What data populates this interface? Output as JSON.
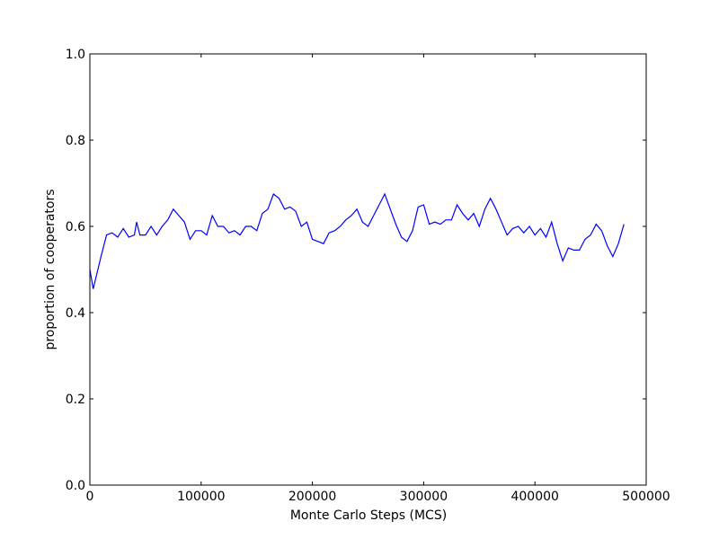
{
  "chart_data": {
    "type": "line",
    "xlabel": "Monte Carlo Steps (MCS)",
    "ylabel": "proportion of cooperators",
    "x": [
      0,
      3000,
      10000,
      15000,
      20000,
      25000,
      30000,
      35000,
      40000,
      42000,
      45000,
      50000,
      55000,
      60000,
      65000,
      70000,
      75000,
      80000,
      85000,
      90000,
      95000,
      100000,
      105000,
      110000,
      115000,
      120000,
      125000,
      130000,
      135000,
      140000,
      145000,
      150000,
      155000,
      160000,
      165000,
      170000,
      175000,
      180000,
      185000,
      190000,
      195000,
      200000,
      205000,
      210000,
      215000,
      220000,
      225000,
      230000,
      235000,
      240000,
      245000,
      250000,
      255000,
      260000,
      265000,
      270000,
      275000,
      280000,
      285000,
      290000,
      295000,
      300000,
      305000,
      310000,
      315000,
      320000,
      325000,
      330000,
      335000,
      340000,
      345000,
      350000,
      355000,
      360000,
      365000,
      370000,
      375000,
      380000,
      385000,
      390000,
      395000,
      400000,
      405000,
      410000,
      415000,
      420000,
      425000,
      430000,
      435000,
      440000,
      445000,
      450000,
      455000,
      460000,
      465000,
      470000,
      475000,
      480000
    ],
    "series": [
      {
        "color": "#0000ff",
        "values": [
          0.5,
          0.455,
          0.53,
          0.58,
          0.585,
          0.575,
          0.595,
          0.575,
          0.58,
          0.61,
          0.58,
          0.58,
          0.6,
          0.58,
          0.6,
          0.615,
          0.64,
          0.625,
          0.61,
          0.57,
          0.59,
          0.59,
          0.58,
          0.625,
          0.6,
          0.6,
          0.585,
          0.59,
          0.58,
          0.6,
          0.6,
          0.59,
          0.63,
          0.64,
          0.675,
          0.665,
          0.64,
          0.645,
          0.635,
          0.6,
          0.61,
          0.57,
          0.565,
          0.56,
          0.585,
          0.59,
          0.6,
          0.615,
          0.625,
          0.64,
          0.61,
          0.6,
          0.625,
          0.65,
          0.675,
          0.64,
          0.605,
          0.575,
          0.565,
          0.59,
          0.645,
          0.65,
          0.605,
          0.61,
          0.605,
          0.615,
          0.615,
          0.65,
          0.63,
          0.615,
          0.63,
          0.6,
          0.64,
          0.665,
          0.64,
          0.61,
          0.58,
          0.595,
          0.6,
          0.585,
          0.6,
          0.58,
          0.595,
          0.575,
          0.61,
          0.56,
          0.52,
          0.55,
          0.545,
          0.545,
          0.57,
          0.58,
          0.605,
          0.59,
          0.555,
          0.53,
          0.56,
          0.605
        ]
      }
    ],
    "xlim": [
      0,
      500000
    ],
    "xticks": [
      0,
      100000,
      200000,
      300000,
      400000,
      500000
    ],
    "ylim": [
      0,
      1
    ],
    "yticks": [
      {
        "value": 0,
        "label": "0.0"
      },
      0.2,
      0.4,
      0.6,
      0.8,
      {
        "value": 1,
        "label": "1.0"
      }
    ]
  }
}
